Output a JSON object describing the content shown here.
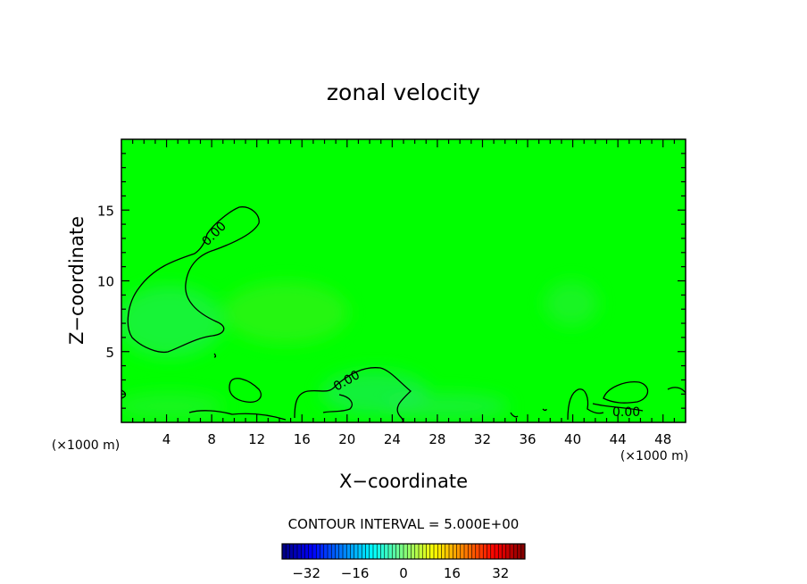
{
  "chart_data": {
    "type": "heatmap",
    "title": "zonal velocity",
    "xlabel": "X−coordinate",
    "ylabel": "Z−coordinate",
    "x_unit": "(×1000 m)",
    "y_unit": "(×1000 m)",
    "xlim": [
      0,
      50
    ],
    "ylim": [
      0,
      20
    ],
    "x_ticks": [
      4,
      8,
      12,
      16,
      20,
      24,
      28,
      32,
      36,
      40,
      44,
      48
    ],
    "y_ticks": [
      5,
      10,
      15
    ],
    "contour_interval_text": "CONTOUR INTERVAL = 5.000E+00",
    "contour_value_labels": [
      "0.00",
      "0.00",
      "0.00"
    ],
    "colorbar": {
      "range": [
        -40,
        40
      ],
      "ticks": [
        -32,
        -16,
        0,
        16,
        32
      ],
      "tick_labels": [
        "−32",
        "−16",
        "0",
        "16",
        "32"
      ]
    },
    "background_value": 0,
    "colors": {
      "field": "#00ff00",
      "field_slightly_negative": "#22f060",
      "field_slightly_positive": "#3cf02a",
      "contour": "#000000"
    }
  }
}
